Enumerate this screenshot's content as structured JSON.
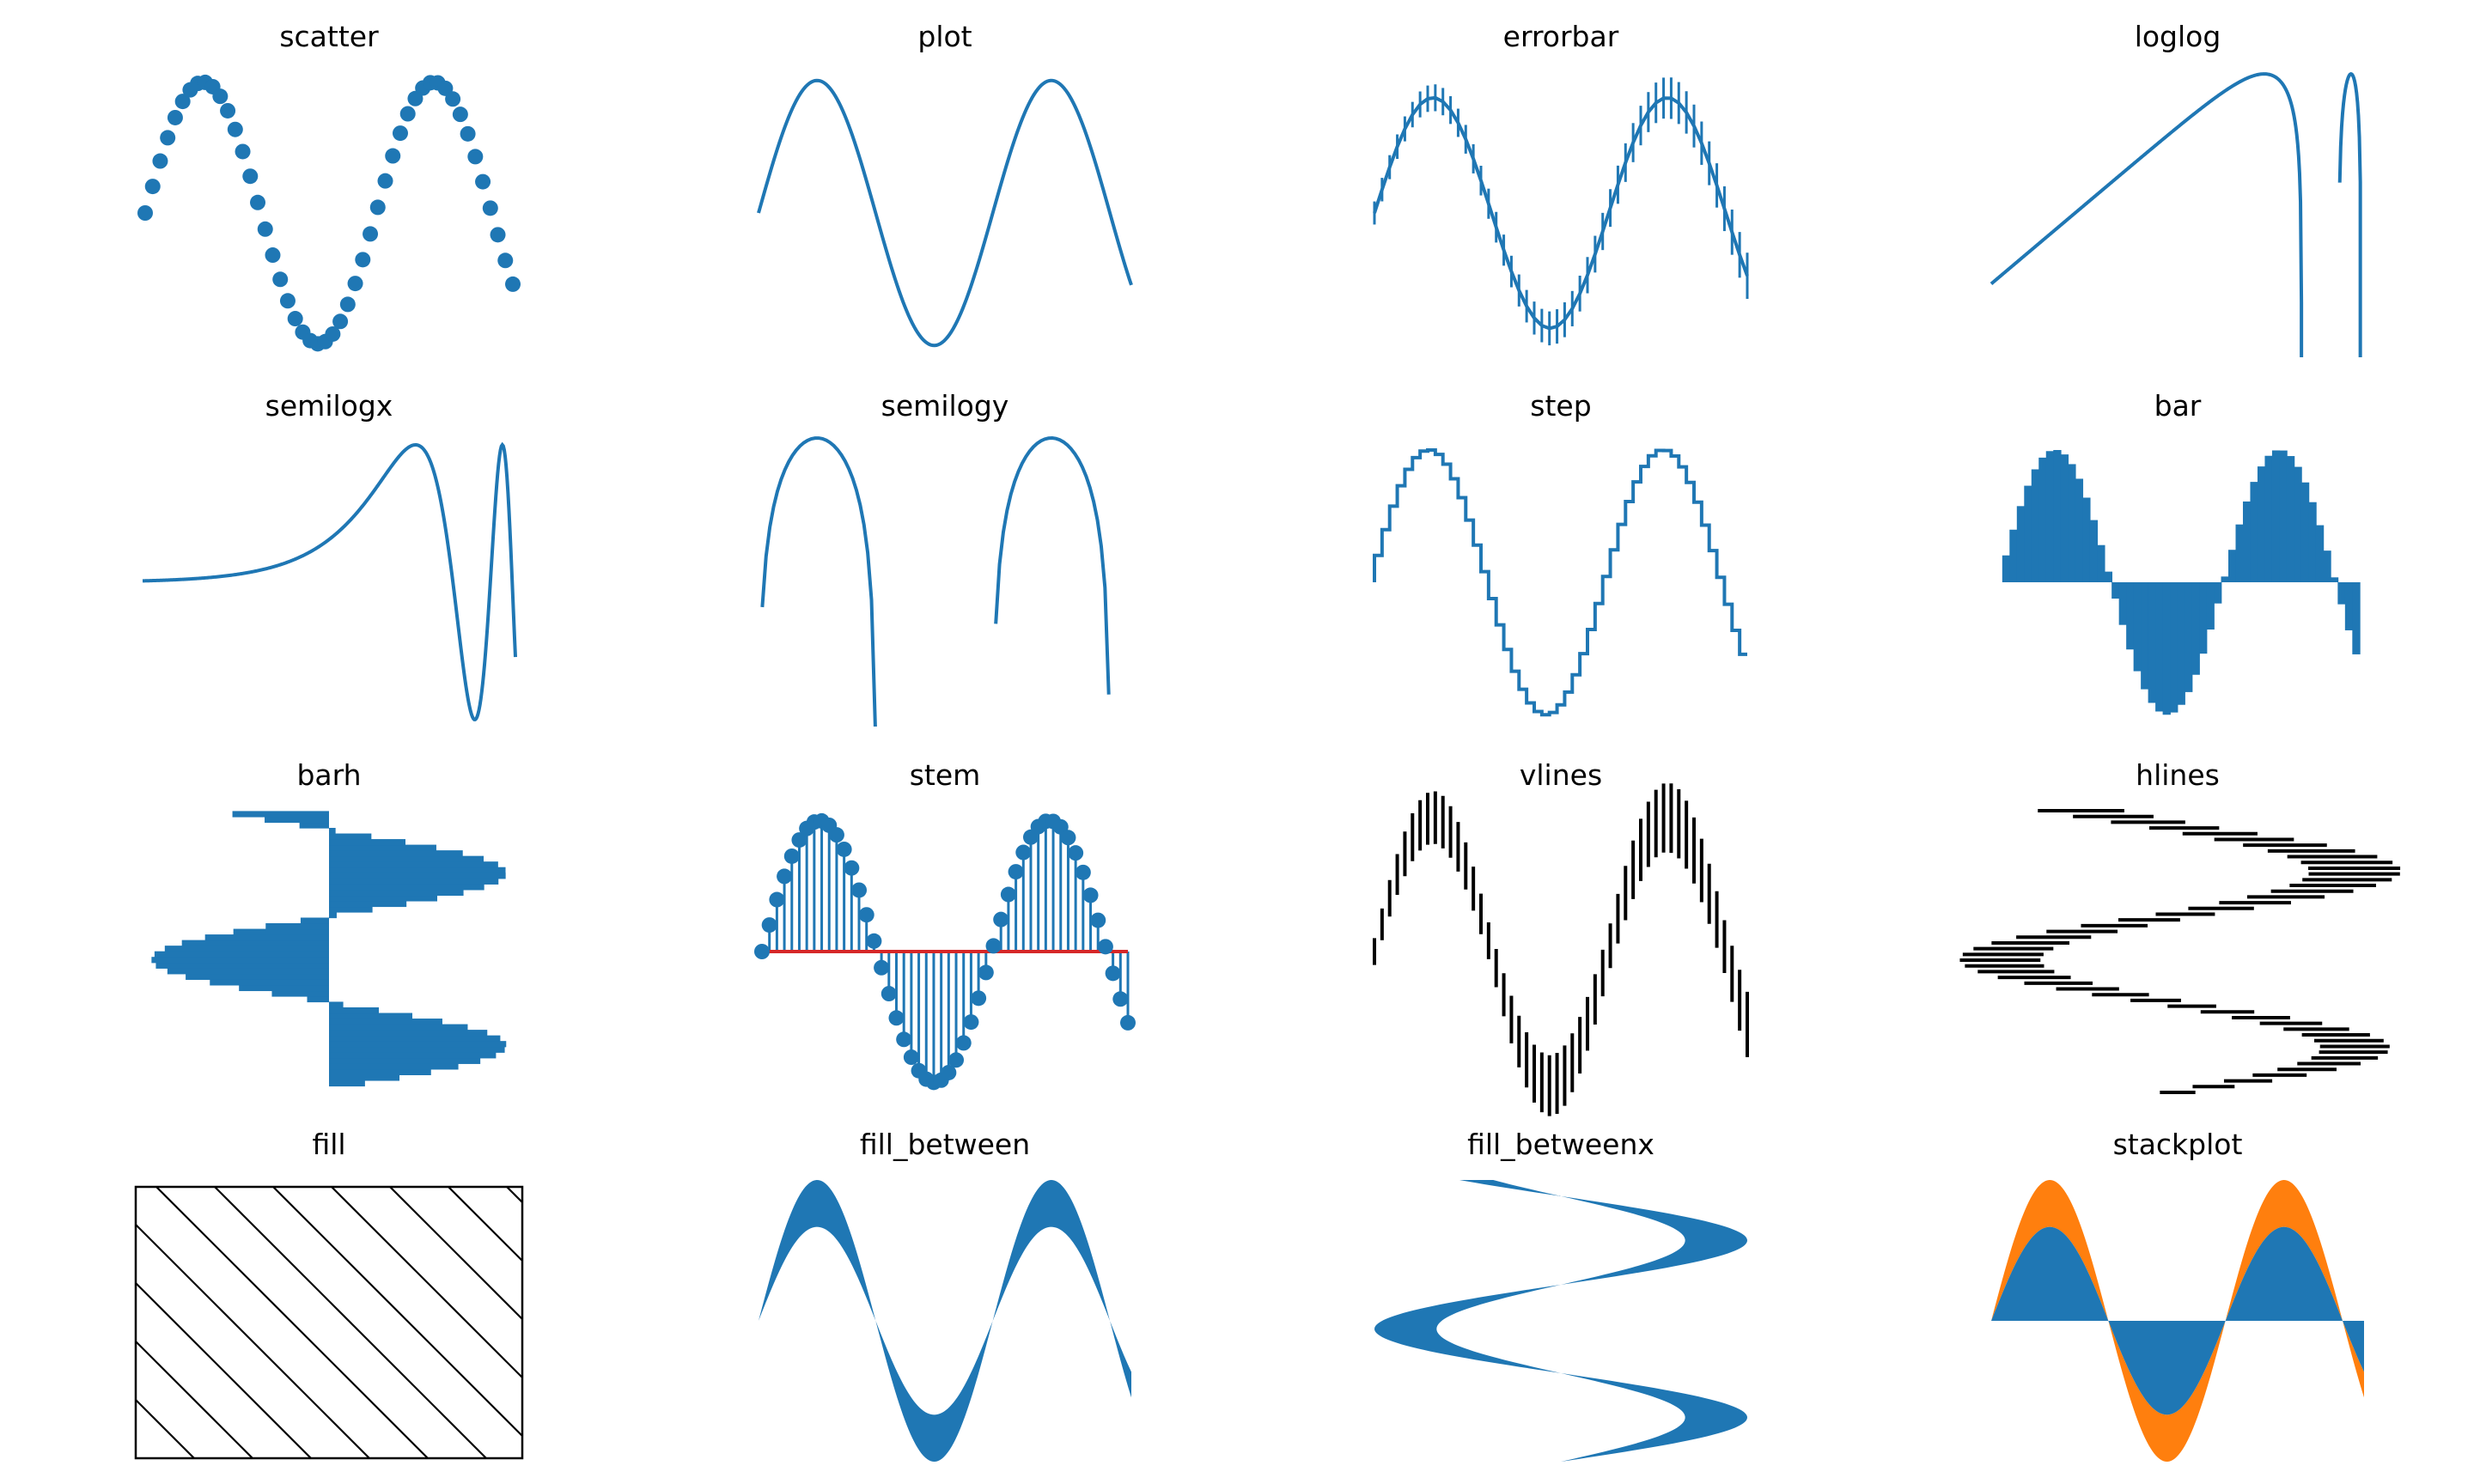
{
  "figure": {
    "colors": {
      "primary": "#1f77b4",
      "secondary": "#ff7f0e",
      "baseline": "#d62728",
      "ink": "#000000"
    }
  },
  "chart_data": [
    {
      "key": "scatter",
      "title": "scatter",
      "type": "scatter",
      "function": "sin(x)",
      "x_range": [
        0,
        10
      ],
      "samples": 50,
      "ylim": [
        -1,
        1
      ]
    },
    {
      "key": "plot",
      "title": "plot",
      "type": "line",
      "function": "sin(x)",
      "x_range": [
        0,
        10
      ],
      "ylim": [
        -1,
        1
      ]
    },
    {
      "key": "errorbar",
      "title": "errorbar",
      "type": "line",
      "function": "sin(x)",
      "x_range": [
        0,
        10
      ],
      "samples": 50,
      "error_y": "0.1 + 0.1*x/10"
    },
    {
      "key": "loglog",
      "title": "loglog",
      "type": "line",
      "scale": "log-log",
      "function": "sin(x)",
      "x_range": [
        0.01,
        10
      ]
    },
    {
      "key": "semilogx",
      "title": "semilogx",
      "type": "line",
      "scale": "log-x",
      "function": "sin(x)",
      "x_range": [
        0.01,
        10
      ]
    },
    {
      "key": "semilogy",
      "title": "semilogy",
      "type": "line",
      "scale": "log-y",
      "function": "sin(x)",
      "x_range": [
        0,
        10
      ]
    },
    {
      "key": "step",
      "title": "step",
      "type": "line",
      "style": "step",
      "function": "sin(x)",
      "x_range": [
        0,
        10
      ],
      "samples": 50
    },
    {
      "key": "bar",
      "title": "bar",
      "type": "bar",
      "function": "sin(x)",
      "x_range": [
        0,
        10
      ],
      "samples": 50
    },
    {
      "key": "barh",
      "title": "barh",
      "type": "bar",
      "orientation": "horizontal",
      "function": "sin(x)",
      "x_range": [
        0,
        10
      ],
      "samples": 50
    },
    {
      "key": "stem",
      "title": "stem",
      "type": "scatter",
      "style": "stem",
      "function": "sin(x)",
      "x_range": [
        0,
        10
      ],
      "samples": 50,
      "baseline": 0
    },
    {
      "key": "vlines",
      "title": "vlines",
      "type": "bar",
      "style": "vlines",
      "function": "sin(x)",
      "x_range": [
        0,
        10
      ],
      "samples": 50
    },
    {
      "key": "hlines",
      "title": "hlines",
      "type": "bar",
      "style": "hlines",
      "function": "sin(x)",
      "x_range": [
        0,
        10
      ],
      "samples": 50
    },
    {
      "key": "fill",
      "title": "fill",
      "type": "area",
      "shape": "rectangle",
      "hatch": "diagonal"
    },
    {
      "key": "fill_between",
      "title": "fill_between",
      "type": "area",
      "lower": "sin(x)",
      "upper": "1.5*sin(x)",
      "x_range": [
        0,
        10
      ]
    },
    {
      "key": "fill_betweenx",
      "title": "fill_betweenx",
      "type": "area",
      "orientation": "horizontal",
      "lower": "sin(x)",
      "upper": "1.5*sin(x)",
      "x_range": [
        0,
        10
      ]
    },
    {
      "key": "stackplot",
      "title": "stackplot",
      "type": "area",
      "style": "stacked",
      "series_functions": [
        "sin(x)",
        "0.5*sin(x)"
      ],
      "x_range": [
        0,
        10
      ]
    }
  ]
}
